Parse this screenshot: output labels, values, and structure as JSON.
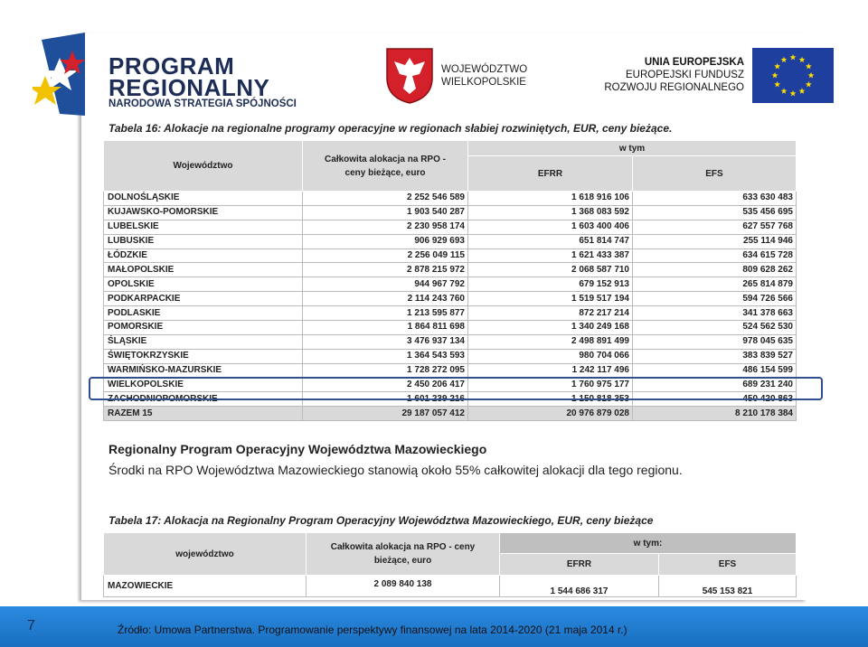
{
  "header": {
    "program_logo": [
      "PROGRAM",
      "REGIONALNY",
      "NARODOWA STRATEGIA SPÓJNOŚCI"
    ],
    "region_logo": [
      "WOJEWÓDZTWO",
      "WIELKOPOLSKIE"
    ],
    "eu_logo": [
      "UNIA EUROPEJSKA",
      "EUROPEJSKI FUNDUSZ",
      "ROZWOJU REGIONALNEGO"
    ]
  },
  "table16": {
    "caption": "Tabela 16: Alokacje na regionalne programy operacyjne w regionach słabiej rozwiniętych, EUR, ceny bieżące.",
    "columns": [
      "Województwo",
      "Całkowita alokacja na RPO - ceny bieżące, euro",
      "w tym",
      "EFRR",
      "EFS"
    ],
    "rows": [
      [
        "DOLNOŚLĄSKIE",
        "2 252 546 589",
        "1 618 916 106",
        "633 630 483"
      ],
      [
        "KUJAWSKO-POMORSKIE",
        "1 903 540 287",
        "1 368 083 592",
        "535 456 695"
      ],
      [
        "LUBELSKIE",
        "2 230 958 174",
        "1 603 400 406",
        "627 557 768"
      ],
      [
        "LUBUSKIE",
        "906 929 693",
        "651 814 747",
        "255 114 946"
      ],
      [
        "ŁÓDZKIE",
        "2 256 049 115",
        "1 621 433 387",
        "634 615 728"
      ],
      [
        "MAŁOPOLSKIE",
        "2 878 215 972",
        "2 068 587 710",
        "809 628 262"
      ],
      [
        "OPOLSKIE",
        "944 967 792",
        "679 152 913",
        "265 814 879"
      ],
      [
        "PODKARPACKIE",
        "2 114 243 760",
        "1 519 517 194",
        "594 726 566"
      ],
      [
        "PODLASKIE",
        "1 213 595 877",
        "872 217 214",
        "341 378 663"
      ],
      [
        "POMORSKIE",
        "1 864 811 698",
        "1 340 249 168",
        "524 562 530"
      ],
      [
        "ŚLĄSKIE",
        "3 476 937 134",
        "2 498 891 499",
        "978 045 635"
      ],
      [
        "ŚWIĘTOKRZYSKIE",
        "1 364 543 593",
        "980 704 066",
        "383 839 527"
      ],
      [
        "WARMIŃSKO-MAZURSKIE",
        "1 728 272 095",
        "1 242 117 496",
        "486 154 599"
      ],
      [
        "WIELKOPOLSKIE",
        "2 450 206 417",
        "1 760 975 177",
        "689 231 240"
      ],
      [
        "ZACHODNIOPOMORSKIE",
        "1 601 239 216",
        "1 150 818 353",
        "450 420 863"
      ]
    ],
    "total": [
      "RAZEM 15",
      "29 187 057 412",
      "20 976 879 028",
      "8 210 178 384"
    ]
  },
  "section": {
    "heading": "Regionalny Program Operacyjny Województwa Mazowieckiego",
    "text": "Środki na RPO Województwa Mazowieckiego stanowią około 55% całkowitej alokacji dla tego regionu."
  },
  "table17": {
    "caption": "Tabela 17: Alokacja na Regionalny Program Operacyjny Województwa Mazowieckiego, EUR, ceny bieżące",
    "columns": [
      "województwo",
      "Całkowita alokacja na RPO - ceny bieżące, euro",
      "w tym:",
      "EFRR",
      "EFS"
    ],
    "rows": [
      [
        "MAZOWIECKIE",
        "2 089 840 138",
        "1 544 686 317",
        "545 153 821"
      ]
    ]
  },
  "footer": {
    "page": "7",
    "source": "Źródło: Umowa Partnerstwa. Programowanie perspektywy finansowej na lata 2014-2020 (21 maja 2014 r.)"
  }
}
